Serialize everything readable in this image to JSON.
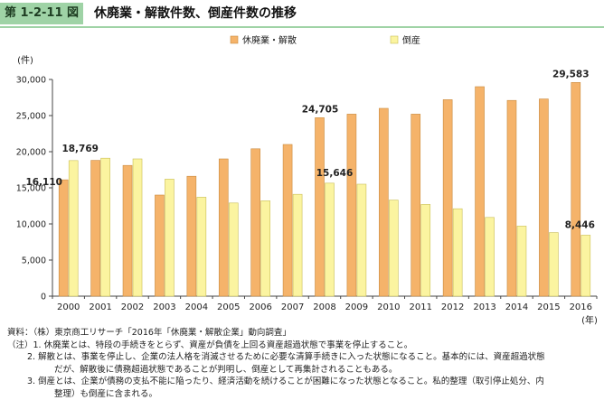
{
  "figure": {
    "number": "第 1-2-11 図",
    "title": "休廃業・解散件数、倒産件数の推移"
  },
  "colors": {
    "header": "#9fd3a6",
    "series_closure": "#f5b36a",
    "series_closure_border": "#c88a3f",
    "series_bankruptcy": "#fbf4a0",
    "series_bankruptcy_border": "#c9bd55"
  },
  "chart_data": {
    "type": "bar",
    "title": "",
    "ylabel": "(件)",
    "xlabel": "(年)",
    "ylim": [
      0,
      30000
    ],
    "yticks": [
      "0",
      "5,000",
      "10,000",
      "15,000",
      "20,000",
      "25,000",
      "30,000"
    ],
    "grid": false,
    "legend_position": "top",
    "categories": [
      "2000",
      "2001",
      "2002",
      "2003",
      "2004",
      "2005",
      "2006",
      "2007",
      "2008",
      "2009",
      "2010",
      "2011",
      "2012",
      "2013",
      "2014",
      "2015",
      "2016"
    ],
    "series": [
      {
        "name": "休廃業・解散",
        "values": [
          16110,
          18800,
          18100,
          14000,
          16600,
          19000,
          20400,
          21000,
          24705,
          25200,
          26000,
          25200,
          27200,
          29000,
          27100,
          27300,
          29583
        ],
        "labels": {
          "0": "16,110",
          "8": "24,705",
          "16": "29,583"
        }
      },
      {
        "name": "倒産",
        "values": [
          18769,
          19100,
          19000,
          16200,
          13700,
          12900,
          13200,
          14100,
          15646,
          15500,
          13300,
          12700,
          12100,
          10900,
          9700,
          8800,
          8446
        ],
        "labels": {
          "0": "18,769",
          "8": "15,646",
          "16": "8,446"
        }
      }
    ]
  },
  "notes": {
    "source": "資料：（株）東京商工リサーチ「2016年「休廃業・解散企業」動向調査」",
    "note1": "（注）1. 休廃業とは、特段の手続きをとらず、資産が負債を上回る資産超過状態で事業を停止すること。",
    "note2a": "2. 解散とは、事業を停止し、企業の法人格を消滅させるために必要な清算手続きに入った状態になること。基本的には、資産超過状態",
    "note2b": "だが、解散後に債務超過状態であることが判明し、倒産として再集計されることもある。",
    "note3a": "3. 倒産とは、企業が債務の支払不能に陥ったり、経済活動を続けることが困難になった状態となること。私的整理（取引停止処分、内",
    "note3b": "整理）も倒産に含まれる。"
  }
}
